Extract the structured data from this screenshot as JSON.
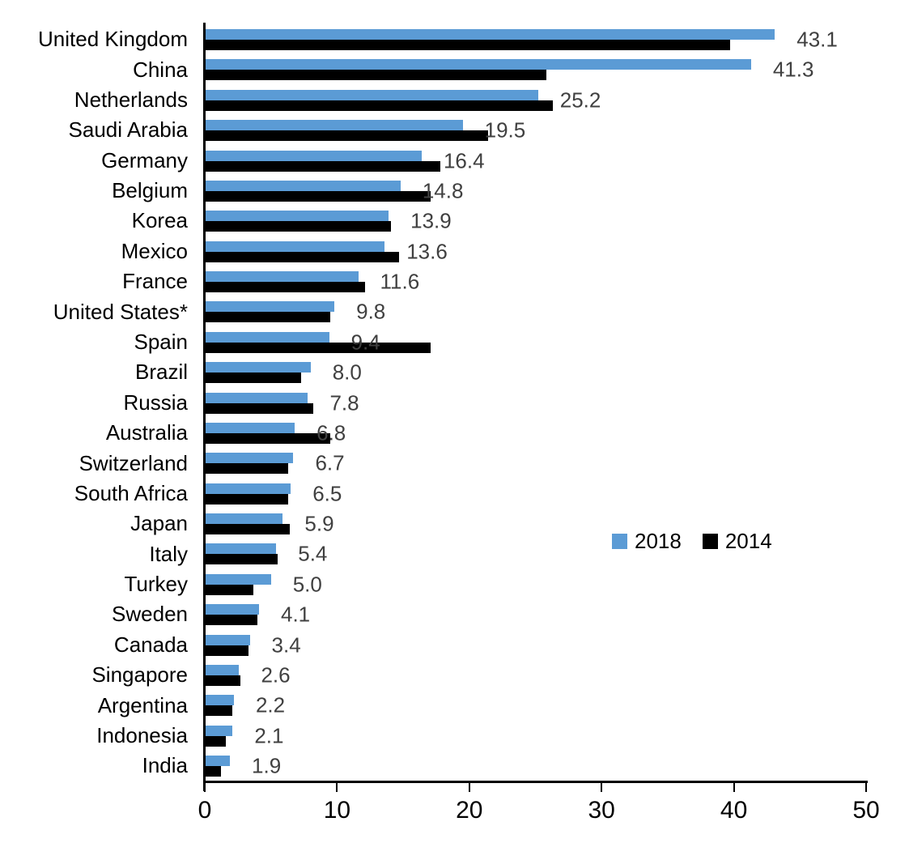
{
  "chart_data": {
    "type": "bar",
    "orientation": "horizontal",
    "title": "",
    "xlabel": "",
    "ylabel": "",
    "xlim": [
      0,
      50
    ],
    "x_ticks": [
      "0",
      "10",
      "20",
      "30",
      "40",
      "50"
    ],
    "x_tick_values": [
      0,
      10,
      20,
      30,
      40,
      50
    ],
    "grid": false,
    "legend_position": "middle-right",
    "categories": [
      "United Kingdom",
      "China",
      "Netherlands",
      "Saudi Arabia",
      "Germany",
      "Belgium",
      "Korea",
      "Mexico",
      "France",
      "United States*",
      "Spain",
      "Brazil",
      "Russia",
      "Australia",
      "Switzerland",
      "South Africa",
      "Japan",
      "Italy",
      "Turkey",
      "Sweden",
      "Canada",
      "Singapore",
      "Argentina",
      "Indonesia",
      "India"
    ],
    "series": [
      {
        "name": "2018",
        "color": "#5B9BD5",
        "data_labels_shown": true,
        "values": [
          43.1,
          41.3,
          25.2,
          19.5,
          16.4,
          14.8,
          13.9,
          13.6,
          11.6,
          9.8,
          9.4,
          8.0,
          7.8,
          6.8,
          6.7,
          6.5,
          5.9,
          5.4,
          5.0,
          4.1,
          3.4,
          2.6,
          2.2,
          2.1,
          1.9
        ]
      },
      {
        "name": "2014",
        "color": "#000000",
        "data_labels_shown": false,
        "values": [
          39.7,
          25.8,
          26.3,
          21.4,
          17.8,
          17.1,
          14.1,
          14.7,
          12.1,
          9.5,
          17.1,
          7.3,
          8.2,
          9.5,
          6.3,
          6.3,
          6.4,
          5.5,
          3.7,
          4.0,
          3.3,
          2.7,
          2.1,
          1.6,
          1.2
        ]
      }
    ],
    "value_labels_2018": [
      "43.1",
      "41.3",
      "25.2",
      "19.5",
      "16.4",
      "14.8",
      "13.9",
      "13.6",
      "11.6",
      "9.8",
      "9.4",
      "8.0",
      "7.8",
      "6.8",
      "6.7",
      "6.5",
      "5.9",
      "5.4",
      "5.0",
      "4.1",
      "3.4",
      "2.6",
      "2.2",
      "2.1",
      "1.9"
    ]
  },
  "legend": {
    "items": [
      {
        "label": "2018",
        "color": "#5B9BD5"
      },
      {
        "label": "2014",
        "color": "#000000"
      }
    ]
  },
  "colors": {
    "background": "#ffffff",
    "axis": "#000000",
    "category_text": "#000000",
    "value_label_text": "#404040",
    "series_2018": "#5B9BD5",
    "series_2014": "#000000"
  }
}
